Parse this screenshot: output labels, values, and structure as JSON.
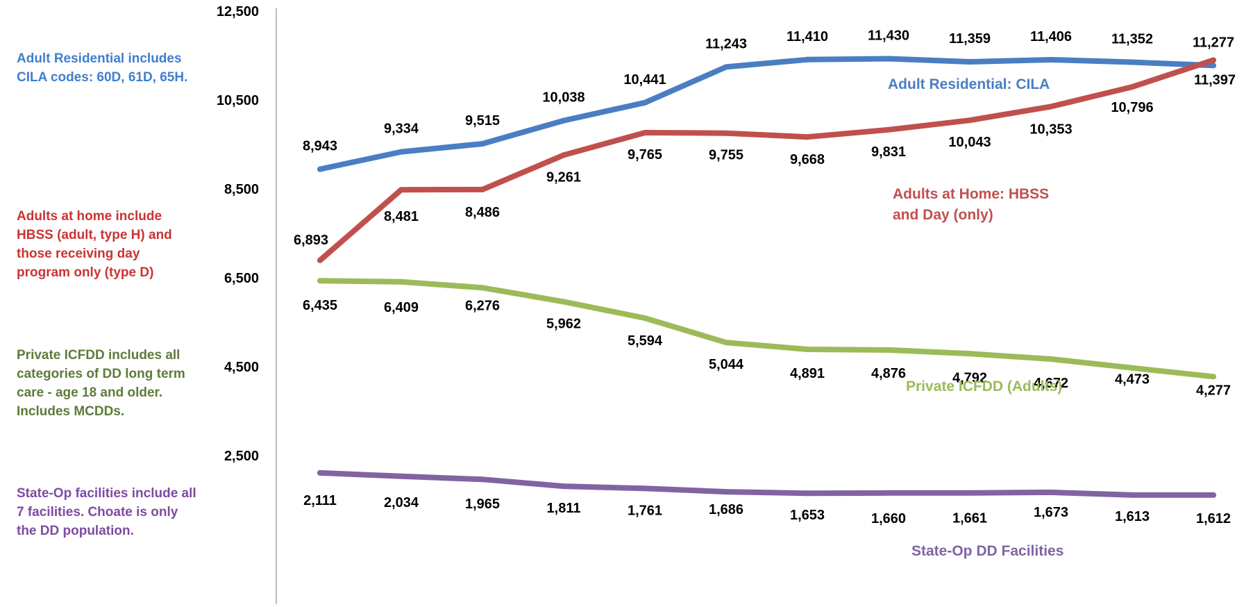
{
  "notes": {
    "residential": {
      "lines": [
        "Adult  Residential includes",
        "CILA codes: 60D, 61D, 65H."
      ],
      "color": "#3F7FCF"
    },
    "home": {
      "lines": [
        "Adults at home include",
        "HBSS (adult, type H) and",
        "those receiving day",
        "program only (type D)"
      ],
      "color": "#CC3333"
    },
    "icfdd": {
      "lines": [
        "Private ICFDD includes all",
        "categories of DD long term",
        "care - age 18 and older.",
        "Includes MCDDs."
      ],
      "color": "#5E7B3A"
    },
    "stateop": {
      "lines": [
        "State-Op facilities include all",
        "7 facilities.  Choate is only",
        "the DD population."
      ],
      "color": "#7E4BA3"
    }
  },
  "chart_data": {
    "type": "line",
    "ylim": [
      500,
      12500
    ],
    "yticks": [
      2500,
      4500,
      6500,
      8500,
      10500,
      12500
    ],
    "ytick_labels": [
      "2,500",
      "4,500",
      "6,500",
      "8,500",
      "10,500",
      "12,500"
    ],
    "grid": false,
    "point_count": 12,
    "series": [
      {
        "id": "cila",
        "name": "Adult Residential:  CILA",
        "name_lines": [
          "Adult Residential:  CILA"
        ],
        "color": "#4A7EC3",
        "values": [
          8943,
          9334,
          9515,
          10038,
          10441,
          11243,
          11410,
          11430,
          11359,
          11406,
          11352,
          11277
        ],
        "labels": [
          "8,943",
          "9,334",
          "9,515",
          "10,038",
          "10,441",
          "11,243",
          "11,410",
          "11,430",
          "11,359",
          "11,406",
          "11,352",
          "11,277"
        ]
      },
      {
        "id": "home",
        "name": "Adults at Home:  HBSS and Day (only)",
        "name_lines": [
          "Adults at Home:  HBSS",
          "and Day (only)"
        ],
        "color": "#C0504D",
        "values": [
          6893,
          8481,
          8486,
          9261,
          9765,
          9755,
          9668,
          9831,
          10043,
          10353,
          10796,
          11397
        ],
        "labels": [
          "6,893",
          "8,481",
          "8,486",
          "9,261",
          "9,765",
          "9,755",
          "9,668",
          "9,831",
          "10,043",
          "10,353",
          "10,796",
          "11,397"
        ]
      },
      {
        "id": "icfdd",
        "name": "Private ICFDD (Adults)",
        "name_lines": [
          "Private ICFDD (Adults)"
        ],
        "color": "#9BBB59",
        "values": [
          6435,
          6409,
          6276,
          5962,
          5594,
          5044,
          4891,
          4876,
          4792,
          4672,
          4473,
          4277
        ],
        "labels": [
          "6,435",
          "6,409",
          "6,276",
          "5,962",
          "5,594",
          "5,044",
          "4,891",
          "4,876",
          "4,792",
          "4,672",
          "4,473",
          "4,277"
        ]
      },
      {
        "id": "stateop",
        "name": "State-Op DD Facilities",
        "name_lines": [
          "State-Op DD Facilities"
        ],
        "color": "#8064A2",
        "values": [
          2111,
          2034,
          1965,
          1811,
          1761,
          1686,
          1653,
          1660,
          1661,
          1673,
          1613,
          1612
        ],
        "labels": [
          "2,111",
          "2,034",
          "1,965",
          "1,811",
          "1,761",
          "1,686",
          "1,653",
          "1,660",
          "1,661",
          "1,673",
          "1,613",
          "1,612"
        ]
      }
    ]
  }
}
